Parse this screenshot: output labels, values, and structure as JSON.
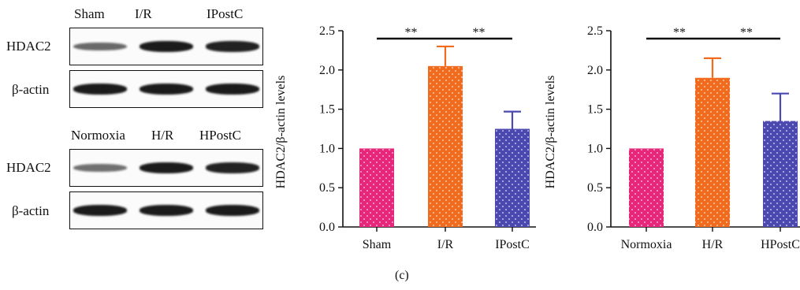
{
  "blots": {
    "top": {
      "lanes": [
        "Sham",
        "I/R",
        "IPostC"
      ],
      "rows": [
        {
          "label": "HDAC2",
          "intensity": [
            0.45,
            1.0,
            0.95
          ]
        },
        {
          "label": "β-actin",
          "intensity": [
            1.0,
            1.0,
            1.0
          ]
        }
      ]
    },
    "bottom": {
      "lanes": [
        "Normoxia",
        "H/R",
        "HPostC"
      ],
      "rows": [
        {
          "label": "HDAC2",
          "intensity": [
            0.4,
            1.0,
            0.95
          ]
        },
        {
          "label": "β-actin",
          "intensity": [
            1.0,
            1.0,
            1.0
          ]
        }
      ]
    }
  },
  "figure_label": "(c)",
  "chart_data": [
    {
      "type": "bar",
      "categories": [
        "Sham",
        "I/R",
        "IPostC"
      ],
      "values": [
        1.0,
        2.05,
        1.25
      ],
      "errors": [
        0,
        0.25,
        0.22
      ],
      "colors": [
        "#e8267a",
        "#f26b1d",
        "#4b48b0"
      ],
      "ylabel": "HDAC2/β-actin levels",
      "xlabel": "",
      "ylim": [
        0,
        2.5
      ],
      "yticks": [
        "0.0",
        "0.5",
        "1.0",
        "1.5",
        "2.0",
        "2.5"
      ],
      "significance": [
        {
          "from": 0,
          "to": 1,
          "label": "**"
        },
        {
          "from": 1,
          "to": 2,
          "label": "**"
        }
      ]
    },
    {
      "type": "bar",
      "categories": [
        "Normoxia",
        "H/R",
        "HPostC"
      ],
      "values": [
        1.0,
        1.9,
        1.35
      ],
      "errors": [
        0,
        0.25,
        0.35
      ],
      "colors": [
        "#e8267a",
        "#f26b1d",
        "#4b48b0"
      ],
      "ylabel": "HDAC2/β-actin levels",
      "xlabel": "",
      "ylim": [
        0,
        2.5
      ],
      "yticks": [
        "0.0",
        "0.5",
        "1.0",
        "1.5",
        "2.0",
        "2.5"
      ],
      "significance": [
        {
          "from": 0,
          "to": 1,
          "label": "**"
        },
        {
          "from": 1,
          "to": 2,
          "label": "**"
        }
      ]
    }
  ]
}
